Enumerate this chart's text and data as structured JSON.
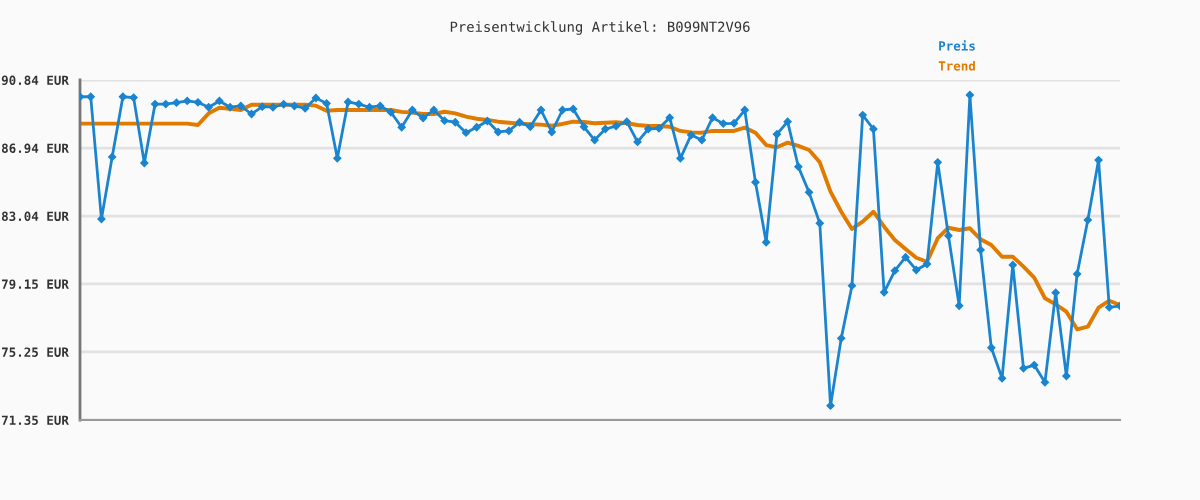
{
  "chart_data": {
    "type": "line",
    "title": "Preisentwicklung Artikel: B099NT2V96",
    "categories": [
      null,
      null,
      null,
      null,
      null,
      null,
      null,
      null,
      null,
      null,
      null,
      null,
      null,
      null,
      null,
      null,
      null,
      null,
      null,
      null,
      null,
      null,
      null,
      null,
      null,
      null,
      null,
      null,
      null,
      null,
      null,
      null,
      null,
      null,
      null,
      null,
      null,
      null,
      null,
      null,
      null,
      null,
      null,
      null,
      null,
      null,
      null,
      null,
      null,
      null,
      null,
      null,
      null,
      null,
      null,
      null,
      null,
      null,
      null,
      null,
      null,
      null,
      null,
      null,
      null,
      null,
      null,
      null,
      null,
      null,
      null,
      null,
      null,
      null,
      null,
      null,
      null,
      null,
      null,
      null,
      null,
      null,
      null,
      null,
      null,
      null,
      null,
      null,
      null,
      null,
      null,
      null,
      null,
      null,
      null,
      null,
      null,
      null
    ],
    "series": [
      {
        "name": "Preis",
        "color": "#1a84cf",
        "marker": "diamond",
        "values": [
          89.88,
          89.88,
          82.87,
          86.43,
          89.88,
          89.83,
          86.08,
          89.46,
          89.46,
          89.54,
          89.64,
          89.56,
          89.28,
          89.64,
          89.28,
          89.35,
          88.89,
          89.31,
          89.28,
          89.45,
          89.35,
          89.22,
          89.81,
          89.5,
          86.35,
          89.58,
          89.46,
          89.28,
          89.35,
          88.99,
          88.13,
          89.12,
          88.66,
          89.12,
          88.51,
          88.42,
          87.82,
          88.13,
          88.49,
          87.86,
          87.92,
          88.42,
          88.16,
          89.12,
          87.86,
          89.12,
          89.18,
          88.16,
          87.4,
          88.03,
          88.2,
          88.45,
          87.29,
          88.03,
          88.07,
          88.68,
          86.35,
          87.69,
          87.4,
          88.68,
          88.34,
          88.36,
          89.12,
          84.98,
          81.54,
          87.73,
          88.45,
          85.87,
          84.4,
          82.63,
          72.17,
          76.03,
          79.05,
          88.83,
          88.03,
          78.67,
          79.91,
          80.68,
          79.95,
          80.29,
          86.12,
          81.91,
          77.9,
          89.98,
          81.1,
          75.49,
          73.74,
          80.24,
          74.31,
          74.5,
          73.51,
          78.65,
          73.87,
          79.72,
          82.82,
          86.25,
          77.81,
          77.89
        ]
      },
      {
        "name": "Trend",
        "color": "#e07b00",
        "marker": "none",
        "values": [
          88.34,
          88.34,
          88.34,
          88.34,
          88.34,
          88.34,
          88.34,
          88.34,
          88.34,
          88.34,
          88.34,
          88.26,
          88.93,
          89.25,
          89.19,
          89.12,
          89.42,
          89.42,
          89.42,
          89.42,
          89.42,
          89.42,
          89.37,
          89.08,
          89.12,
          89.12,
          89.12,
          89.12,
          89.12,
          89.12,
          89.01,
          88.97,
          88.89,
          88.89,
          89.02,
          88.93,
          88.74,
          88.62,
          88.55,
          88.45,
          88.39,
          88.34,
          88.3,
          88.28,
          88.22,
          88.32,
          88.45,
          88.43,
          88.36,
          88.39,
          88.42,
          88.36,
          88.26,
          88.2,
          88.2,
          88.16,
          87.92,
          87.84,
          87.82,
          87.92,
          87.92,
          87.92,
          88.11,
          87.82,
          87.11,
          86.98,
          87.25,
          87.06,
          86.83,
          86.12,
          84.44,
          83.29,
          82.3,
          82.72,
          83.29,
          82.43,
          81.67,
          81.15,
          80.65,
          80.42,
          81.77,
          82.37,
          82.24,
          82.34,
          81.71,
          81.38,
          80.71,
          80.71,
          80.14,
          79.51,
          78.33,
          77.98,
          77.56,
          76.55,
          76.7,
          77.79,
          78.19,
          77.94
        ]
      }
    ],
    "ylim": [
      71.35,
      90.84
    ],
    "yticks": [
      {
        "value": 71.35,
        "label": "71.35 EUR"
      },
      {
        "value": 75.25,
        "label": "75.25 EUR"
      },
      {
        "value": 79.15,
        "label": "79.15 EUR"
      },
      {
        "value": 83.04,
        "label": "83.04 EUR"
      },
      {
        "value": 86.94,
        "label": "86.94 EUR"
      },
      {
        "value": 90.84,
        "label": "90.84 EUR"
      }
    ],
    "grid": "y",
    "legend": "top right",
    "tick_labels": "y",
    "line_style": "solid"
  }
}
